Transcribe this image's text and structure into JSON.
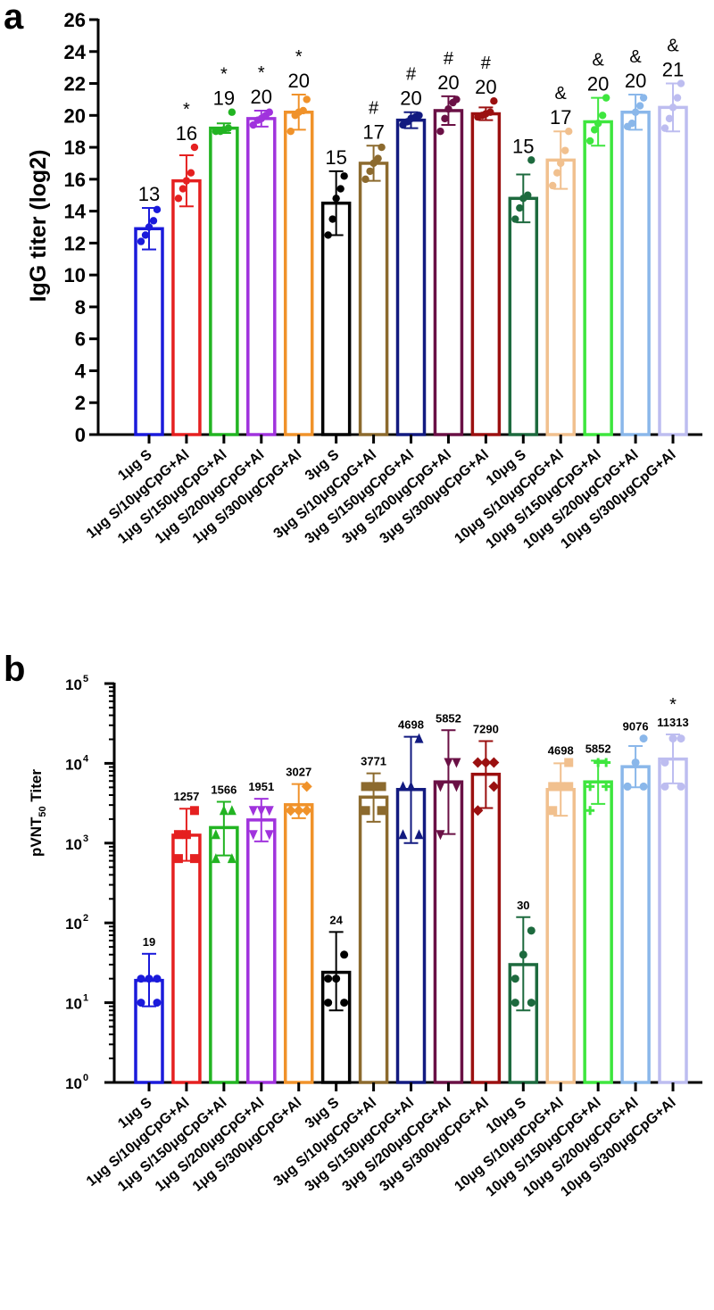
{
  "groups": [
    "1μg S",
    "1μg S/10μgCpG+Al",
    "1μg S/150μgCpG+Al",
    "1μg S/200μgCpG+Al",
    "1μg S/300μgCpG+Al",
    "3μg S",
    "3μg S/10μgCpG+Al",
    "3μg S/150μgCpG+Al",
    "3μg S/200μgCpG+Al",
    "3μg S/300μgCpG+Al",
    "10μg S",
    "10μg S/10μgCpG+Al",
    "10μg S/150μgCpG+Al",
    "10μg S/200μgCpG+Al",
    "10μg S/300μgCpG+Al"
  ],
  "colors": [
    "#1a1adb",
    "#e52020",
    "#22b422",
    "#a033dd",
    "#f0922a",
    "#000000",
    "#8c6a2e",
    "#121a80",
    "#6a1045",
    "#9b1010",
    "#1d6a3e",
    "#f1c08e",
    "#3ee63e",
    "#8ab7ea",
    "#bdbdf0"
  ],
  "chart_data": [
    {
      "panel": "a",
      "type": "bar",
      "title": "",
      "ylabel": "IgG titer (log2)",
      "ylim": [
        0,
        26
      ],
      "yticks": [
        0,
        2,
        4,
        6,
        8,
        10,
        12,
        14,
        16,
        18,
        20,
        22,
        24,
        26
      ],
      "categories": [
        "1μg S",
        "1μg S/10μgCpG+Al",
        "1μg S/150μgCpG+Al",
        "1μg S/200μgCpG+Al",
        "1μg S/300μgCpG+Al",
        "3μg S",
        "3μg S/10μgCpG+Al",
        "3μg S/150μgCpG+Al",
        "3μg S/200μgCpG+Al",
        "3μg S/300μgCpG+Al",
        "10μg S",
        "10μg S/10μgCpG+Al",
        "10μg S/150μgCpG+Al",
        "10μg S/200μgCpG+Al",
        "10μg S/300μgCpG+Al"
      ],
      "values": [
        12.9,
        15.9,
        19.2,
        19.8,
        20.2,
        14.5,
        17.0,
        19.7,
        20.3,
        20.1,
        14.8,
        17.2,
        19.6,
        20.2,
        20.5
      ],
      "error": [
        1.3,
        1.6,
        0.3,
        0.5,
        1.1,
        2.0,
        1.1,
        0.5,
        0.9,
        0.4,
        1.5,
        1.8,
        1.5,
        1.1,
        1.5
      ],
      "points": [
        [
          12.1,
          12.5,
          13,
          13.4,
          14.1
        ],
        [
          14.8,
          15.4,
          15.9,
          16.4,
          18
        ],
        [
          19,
          19,
          19.1,
          19.2,
          20.2
        ],
        [
          19.4,
          19.7,
          19.8,
          20,
          20.2
        ],
        [
          19,
          20,
          20.2,
          20.3,
          21
        ],
        [
          12.5,
          13.5,
          14.8,
          15.4,
          16.2
        ],
        [
          16,
          16.5,
          17,
          17.3,
          18
        ],
        [
          19.4,
          19.6,
          19.8,
          19.9,
          20
        ],
        [
          19,
          19.8,
          20.4,
          20.8,
          21
        ],
        [
          19.9,
          20,
          20.1,
          20.2,
          20.9
        ],
        [
          13.5,
          14.2,
          14.8,
          15,
          17.2
        ],
        [
          15.6,
          16.4,
          17,
          17.8,
          19
        ],
        [
          18.4,
          19.1,
          19.5,
          20,
          21.1
        ],
        [
          19.3,
          19.5,
          20.2,
          20.6,
          21.1
        ],
        [
          19.2,
          19.8,
          20.5,
          21.1,
          22
        ]
      ],
      "data_labels": [
        "13",
        "16",
        "19",
        "20",
        "20",
        "15",
        "17",
        "20",
        "20",
        "20",
        "15",
        "17",
        "20",
        "20",
        "21"
      ],
      "significance": [
        "",
        "*",
        "*",
        "*",
        "*",
        "",
        "#",
        "#",
        "#",
        "#",
        "",
        "&",
        "&",
        "&",
        "&"
      ]
    },
    {
      "panel": "b",
      "type": "bar",
      "title": "",
      "ylabel_main": "pVNT",
      "ylabel_sub": "50",
      "ylabel_tail": " Titer",
      "yscale": "log",
      "ylim": [
        1,
        100000
      ],
      "ytick_base": "10",
      "ytick_exponents": [
        "0",
        "1",
        "2",
        "3",
        "4",
        "5"
      ],
      "categories": [
        "1μg S",
        "1μg S/10μgCpG+Al",
        "1μg S/150μgCpG+Al",
        "1μg S/200μgCpG+Al",
        "1μg S/300μgCpG+Al",
        "3μg S",
        "3μg S/10μgCpG+Al",
        "3μg S/150μgCpG+Al",
        "3μg S/200μgCpG+Al",
        "3μg S/300μgCpG+Al",
        "10μg S",
        "10μg S/10μgCpG+Al",
        "10μg S/150μgCpG+Al",
        "10μg S/200μgCpG+Al",
        "10μg S/300μgCpG+Al"
      ],
      "values": [
        19,
        1257,
        1566,
        1951,
        3027,
        24,
        3771,
        4698,
        5852,
        7290,
        30,
        4698,
        5852,
        9076,
        11313
      ],
      "err_low": [
        9,
        600,
        700,
        1050,
        2050,
        8,
        1850,
        1000,
        1300,
        2750,
        8,
        2200,
        3100,
        5000,
        5600
      ],
      "err_high": [
        41,
        2700,
        3300,
        3600,
        5500,
        77,
        7500,
        21500,
        26000,
        19000,
        118,
        10000,
        10800,
        16500,
        23000
      ],
      "points": [
        [
          10,
          10,
          20,
          20,
          20
        ],
        [
          640,
          640,
          1280,
          1280,
          2560
        ],
        [
          640,
          640,
          1280,
          2560,
          2560
        ],
        [
          1280,
          1280,
          2560,
          2560,
          2560
        ],
        [
          2560,
          2560,
          2560,
          2560,
          5120
        ],
        [
          10,
          10,
          20,
          20,
          40
        ],
        [
          2560,
          2560,
          5120,
          5120,
          5120
        ],
        [
          1280,
          1280,
          5120,
          5120,
          20480
        ],
        [
          1280,
          5120,
          5120,
          10240,
          10240
        ],
        [
          2560,
          5120,
          10240,
          10240,
          10240
        ],
        [
          10,
          10,
          20,
          40,
          80
        ],
        [
          2560,
          5120,
          5120,
          5120,
          10240
        ],
        [
          2560,
          5120,
          5120,
          10240,
          10240
        ],
        [
          5120,
          5120,
          5120,
          10240,
          20480
        ],
        [
          5120,
          5120,
          10240,
          20480,
          20480
        ]
      ],
      "data_labels": [
        "19",
        "1257",
        "1566",
        "1951",
        "3027",
        "24",
        "3771",
        "4698",
        "5852",
        "7290",
        "30",
        "4698",
        "5852",
        "9076",
        "11313"
      ],
      "significance": [
        "",
        "",
        "",
        "",
        "",
        "",
        "",
        "",
        "",
        "",
        "",
        "",
        "",
        "",
        "*"
      ]
    }
  ],
  "panel_letters": [
    "a",
    "b"
  ]
}
